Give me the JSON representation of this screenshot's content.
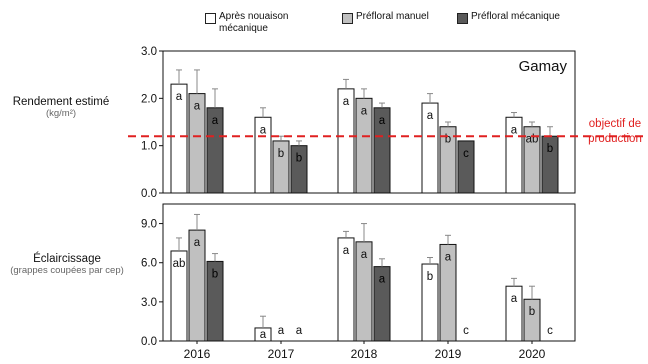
{
  "legend": {
    "items": [
      {
        "label_line1": "Après nouaison",
        "label_line2": "mécanique",
        "color": "#ffffff"
      },
      {
        "label_line1": "Préfloral manuel",
        "label_line2": "",
        "color": "#c0c0c0"
      },
      {
        "label_line1": "Préfloral mécanique",
        "label_line2": "",
        "color": "#5a5a5a"
      }
    ]
  },
  "top_panel": {
    "ylabel": "Rendement estimé",
    "yunit": "(kg/m²)",
    "panel_label": "Gamay",
    "reference_label_line1": "objectif de",
    "reference_label_line2": "production",
    "reference_color": "#e02020"
  },
  "bottom_panel": {
    "ylabel": "Éclaircissage",
    "yunit": "(grappes coupées par cep)"
  },
  "chart_data": [
    {
      "type": "bar",
      "ylabel": "Rendement estimé (kg/m²)",
      "panel_label": "Gamay",
      "categories": [
        "2016",
        "2017",
        "2018",
        "2019",
        "2020"
      ],
      "ylim": [
        0,
        3.0
      ],
      "yticks": [
        "0.0",
        "1.0",
        "2.0",
        "3.0"
      ],
      "reference_line": {
        "y": 1.2,
        "label": "objectif de production",
        "style": "dashed",
        "color": "#e02020"
      },
      "series": [
        {
          "name": "Après nouaison mécanique",
          "color": "#ffffff",
          "values": [
            2.3,
            1.6,
            2.2,
            1.9,
            1.6
          ],
          "errors": [
            0.3,
            0.2,
            0.2,
            0.2,
            0.1
          ],
          "letters": [
            "a",
            "a",
            "a",
            "a",
            "a"
          ]
        },
        {
          "name": "Préfloral manuel",
          "color": "#c0c0c0",
          "values": [
            2.1,
            1.1,
            2.0,
            1.4,
            1.4
          ],
          "errors": [
            0.5,
            0.1,
            0.2,
            0.1,
            0.1
          ],
          "letters": [
            "a",
            "b",
            "a",
            "b",
            "ab"
          ]
        },
        {
          "name": "Préfloral mécanique",
          "color": "#5a5a5a",
          "values": [
            1.8,
            1.0,
            1.8,
            1.1,
            1.2
          ],
          "errors": [
            0.4,
            0.1,
            0.1,
            0.0,
            0.2
          ],
          "letters": [
            "a",
            "b",
            "a",
            "c",
            "b"
          ]
        }
      ]
    },
    {
      "type": "bar",
      "ylabel": "Éclaircissage (grappes coupées par cep)",
      "categories": [
        "2016",
        "2017",
        "2018",
        "2019",
        "2020"
      ],
      "ylim": [
        0,
        10.5
      ],
      "yticks": [
        "0.0",
        "3.0",
        "6.0",
        "9.0"
      ],
      "series": [
        {
          "name": "Après nouaison mécanique",
          "color": "#ffffff",
          "values": [
            6.9,
            1.0,
            7.9,
            5.9,
            4.2
          ],
          "errors": [
            1.0,
            0.9,
            0.5,
            0.5,
            0.6
          ],
          "letters": [
            "ab",
            "a",
            "a",
            "b",
            "a"
          ]
        },
        {
          "name": "Préfloral manuel",
          "color": "#c0c0c0",
          "values": [
            8.5,
            0,
            7.6,
            7.4,
            3.2
          ],
          "errors": [
            1.2,
            0,
            1.4,
            0.7,
            1.0
          ],
          "letters": [
            "a",
            "a",
            "a",
            "a",
            "b"
          ]
        },
        {
          "name": "Préfloral mécanique",
          "color": "#5a5a5a",
          "values": [
            6.1,
            0,
            5.7,
            0,
            0
          ],
          "errors": [
            0.6,
            0,
            0.6,
            0,
            0
          ],
          "letters": [
            "b",
            "a",
            "a",
            "c",
            "c"
          ]
        }
      ]
    }
  ]
}
